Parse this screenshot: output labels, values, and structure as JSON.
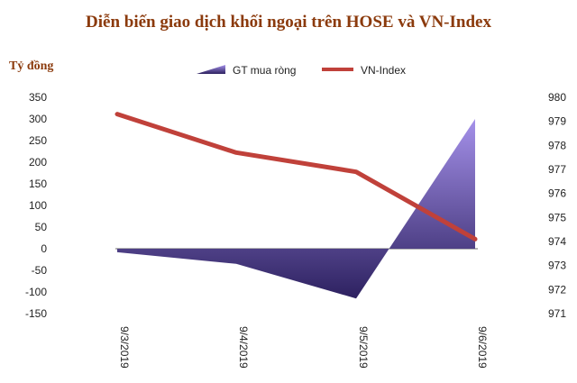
{
  "chart_data": {
    "type": "area+line",
    "title": "Diễn biến giao dịch khối ngoại trên HOSE và VN-Index",
    "ylabel": "Tỷ đồng",
    "categories": [
      "9/3/2019",
      "9/4/2019",
      "9/5/2019",
      "9/6/2019"
    ],
    "series": [
      {
        "name": "GT mua ròng",
        "type": "area",
        "axis": "left",
        "values": [
          -8,
          -35,
          -115,
          300
        ]
      },
      {
        "name": "VN-Index",
        "type": "line",
        "axis": "right",
        "values": [
          979.3,
          977.7,
          976.9,
          974.1
        ]
      }
    ],
    "y_left": {
      "min": -150,
      "max": 350,
      "ticks": [
        "350",
        "300",
        "250",
        "200",
        "150",
        "100",
        "50",
        "0",
        "-50",
        "-100",
        "-150"
      ]
    },
    "y_right": {
      "min": 971,
      "max": 980,
      "ticks": [
        "980",
        "979",
        "978",
        "977",
        "976",
        "975",
        "974",
        "973",
        "972",
        "971"
      ]
    },
    "legend_position": "top",
    "colors": {
      "title": "#8b3a0c",
      "area_dark": "#3a2a6e",
      "area_light": "#9a86e0",
      "line": "#c0413a",
      "zero_line": "#6b6b6b"
    }
  }
}
